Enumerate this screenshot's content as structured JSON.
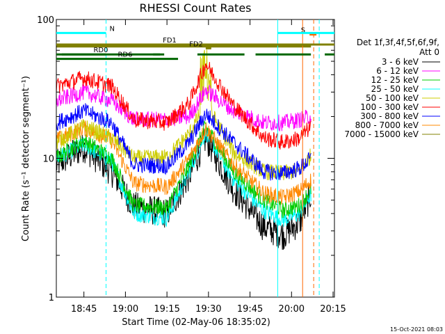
{
  "chart_data": {
    "type": "line",
    "title": "RHESSI Count Rates",
    "xlabel": "Start Time (02-May-06 18:35:02)",
    "ylabel": "Count Rate (s⁻¹ detector segment⁻¹)",
    "x_unit": "time of day",
    "xlim": [
      "18:35:02",
      "20:15:30"
    ],
    "ylim": [
      1,
      100
    ],
    "y_scale": "log",
    "x_ticks": [
      "18:45",
      "19:00",
      "19:15",
      "19:30",
      "19:45",
      "20:00",
      "20:15"
    ],
    "y_ticks": [
      1,
      10,
      100
    ],
    "y_tick_labels": [
      "1",
      "10",
      "100"
    ],
    "grid": false,
    "legend_position": "right",
    "legend_header": [
      "Det 1f,3f,4f,5f,6f,9f,",
      "Att 0"
    ],
    "footer_text": "15-Oct-2021 08:03",
    "series": [
      {
        "name": "3 - 6 keV",
        "color": "#000000",
        "base": [
          9,
          12,
          8,
          4.5,
          4.0,
          7.5,
          14,
          6,
          3.2,
          2.8,
          3.5,
          5.5
        ]
      },
      {
        "name": "6 - 12 keV",
        "color": "#ff00ff",
        "base": [
          26,
          30,
          26,
          19,
          19,
          20,
          31,
          22,
          18,
          18,
          19,
          20
        ]
      },
      {
        "name": "12 - 25 keV",
        "color": "#00cc00",
        "base": [
          10,
          13.5,
          10,
          4.6,
          4.4,
          9,
          17,
          8,
          5,
          4.2,
          4.6,
          6.0
        ]
      },
      {
        "name": "25 - 50 keV",
        "color": "#00ffff",
        "base": [
          10,
          12.5,
          9.5,
          4.0,
          3.7,
          8,
          15.5,
          7,
          4.2,
          3.6,
          4.0,
          5.5
        ]
      },
      {
        "name": "50 - 100 keV",
        "color": "#cccc00",
        "base": [
          13,
          17,
          14,
          10,
          10.2,
          15,
          25,
          11,
          8,
          7.8,
          8.2,
          10.5
        ]
      },
      {
        "name": "100 - 300 keV",
        "color": "#ff0000",
        "base": [
          33,
          38,
          33,
          19,
          18,
          25,
          48,
          24,
          14,
          13,
          14,
          17
        ]
      },
      {
        "name": "300 - 800 keV",
        "color": "#0000ff",
        "base": [
          18,
          22,
          18,
          9,
          8.8,
          13,
          21,
          13,
          8,
          7.8,
          8.5,
          10
        ]
      },
      {
        "name": "800 - 7000 keV",
        "color": "#ff8800",
        "base": [
          13.5,
          16.5,
          13.5,
          6.6,
          6.2,
          10,
          16.5,
          9,
          5.6,
          5.2,
          5.8,
          7
        ]
      },
      {
        "name": "7000 - 15000 keV",
        "color": "#808000",
        "base": [
          64,
          64,
          64,
          64,
          64,
          64,
          64,
          64,
          64,
          64,
          64,
          64
        ]
      }
    ],
    "series_time_minutes": [
      0,
      10,
      20,
      28,
      40,
      48,
      54,
      64,
      75,
      82,
      88,
      92
    ],
    "annotations": [
      {
        "label": "N",
        "color": "#00ffff",
        "y": 80,
        "x_start": "18:35:02",
        "x_end": "18:53:00"
      },
      {
        "label": "S",
        "color": "#ff6600",
        "y": 78,
        "x_start": "20:06:30",
        "x_end": "20:09:00"
      },
      {
        "label": "FD1",
        "color": "#808000",
        "y": 66,
        "x_start": "18:35:02",
        "x_end": "20:15:30"
      },
      {
        "label": "FD2",
        "color": "#808000",
        "y": 62,
        "x_start": "19:29:00",
        "x_end": "19:31:00"
      },
      {
        "label": "RD0",
        "color": "#006600",
        "y": 56,
        "x_start": "18:35:02",
        "x_end": "19:12:30"
      },
      {
        "label": "RD6",
        "color": "#006600",
        "y": 52,
        "x_start": "18:35:02",
        "x_end": "19:19:00"
      }
    ],
    "vertical_lines": [
      {
        "time": "18:53:00",
        "color": "#00ffff",
        "style": "dashed"
      },
      {
        "time": "19:55:00",
        "color": "#00ffff",
        "style": "solid"
      },
      {
        "time": "20:04:00",
        "color": "#ff6600",
        "style": "solid"
      },
      {
        "time": "20:08:00",
        "color": "#ff6600",
        "style": "dashed"
      },
      {
        "time": "20:10:00",
        "color": "#00ffff",
        "style": "dashed"
      }
    ]
  }
}
